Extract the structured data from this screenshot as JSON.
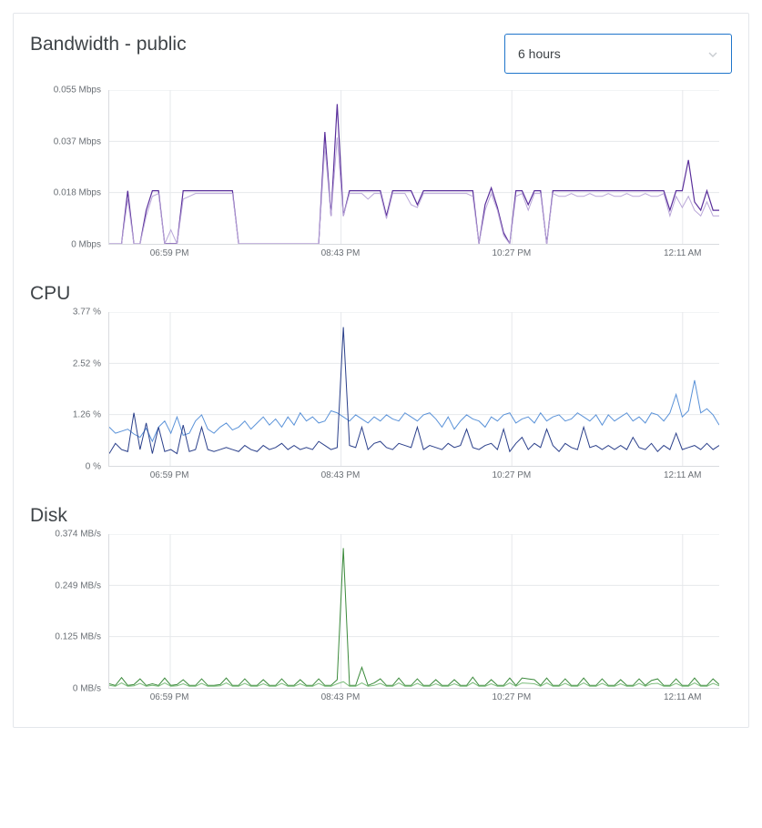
{
  "header": {
    "title": "Bandwidth - public",
    "range_selected": "6 hours"
  },
  "colors": {
    "card_border": "#e4e7eb",
    "select_border": "#1f75cb",
    "grid": "#e6e8eb",
    "axis": "#d9dbdf",
    "text": "#3f4448",
    "tick": "#6a6f75",
    "chevron": "#c8ccd0"
  },
  "x_labels": [
    "06:59 PM",
    "08:43 PM",
    "10:27 PM",
    "12:11 AM"
  ],
  "x_positions": [
    10,
    38,
    66,
    94
  ],
  "charts": {
    "bandwidth": {
      "title": "Bandwidth - public",
      "type": "line",
      "y_labels": [
        "0 Mbps",
        "0.018 Mbps",
        "0.037 Mbps",
        "0.055 Mbps"
      ],
      "ylim": [
        0,
        0.055
      ],
      "grid_color": "#e6e8eb",
      "series": [
        {
          "name": "bandwidth-a",
          "color": "#5a2f9b",
          "stroke_width": 1.2,
          "values": [
            0,
            0,
            0,
            0.019,
            0,
            0,
            0.012,
            0.019,
            0.019,
            0,
            0,
            0,
            0.019,
            0.019,
            0.019,
            0.019,
            0.019,
            0.019,
            0.019,
            0.019,
            0.019,
            0,
            0,
            0,
            0,
            0,
            0,
            0,
            0,
            0,
            0,
            0,
            0,
            0,
            0,
            0.04,
            0.01,
            0.05,
            0.01,
            0.019,
            0.019,
            0.019,
            0.019,
            0.019,
            0.019,
            0.01,
            0.019,
            0.019,
            0.019,
            0.019,
            0.014,
            0.019,
            0.019,
            0.019,
            0.019,
            0.019,
            0.019,
            0.019,
            0.019,
            0.019,
            0,
            0.014,
            0.02,
            0.013,
            0.004,
            0,
            0.019,
            0.019,
            0.014,
            0.019,
            0.019,
            0,
            0.019,
            0.019,
            0.019,
            0.019,
            0.019,
            0.019,
            0.019,
            0.019,
            0.019,
            0.019,
            0.019,
            0.019,
            0.019,
            0.019,
            0.019,
            0.019,
            0.019,
            0.019,
            0.019,
            0.012,
            0.019,
            0.019,
            0.03,
            0.015,
            0.012,
            0.019,
            0.012,
            0.012
          ]
        },
        {
          "name": "bandwidth-b",
          "color": "#b9a6d8",
          "stroke_width": 1,
          "values": [
            0,
            0,
            0,
            0.016,
            0,
            0,
            0.01,
            0.017,
            0.018,
            0,
            0.005,
            0,
            0.016,
            0.017,
            0.018,
            0.018,
            0.018,
            0.018,
            0.018,
            0.018,
            0.018,
            0,
            0,
            0,
            0,
            0,
            0,
            0,
            0,
            0,
            0,
            0,
            0,
            0,
            0,
            0.035,
            0.01,
            0.038,
            0.01,
            0.018,
            0.018,
            0.018,
            0.016,
            0.018,
            0.018,
            0.009,
            0.018,
            0.018,
            0.018,
            0.014,
            0.013,
            0.018,
            0.018,
            0.018,
            0.018,
            0.018,
            0.018,
            0.018,
            0.018,
            0.017,
            0,
            0.012,
            0.018,
            0.012,
            0.003,
            0,
            0.017,
            0.018,
            0.012,
            0.018,
            0.018,
            0,
            0.018,
            0.017,
            0.017,
            0.018,
            0.017,
            0.017,
            0.018,
            0.017,
            0.017,
            0.018,
            0.017,
            0.017,
            0.018,
            0.017,
            0.017,
            0.018,
            0.017,
            0.017,
            0.018,
            0.01,
            0.017,
            0.013,
            0.017,
            0.012,
            0.01,
            0.015,
            0.01,
            0.01
          ]
        }
      ]
    },
    "cpu": {
      "title": "CPU",
      "type": "line",
      "y_labels": [
        "0 %",
        "1.26 %",
        "2.52 %",
        "3.77 %"
      ],
      "ylim": [
        0,
        3.77
      ],
      "grid_color": "#e6e8eb",
      "series": [
        {
          "name": "cpu-b",
          "color": "#5a92d8",
          "stroke_width": 1,
          "values": [
            0.95,
            0.8,
            0.85,
            0.9,
            0.78,
            0.7,
            0.92,
            0.6,
            0.95,
            1.1,
            0.8,
            1.2,
            0.75,
            0.8,
            1.1,
            1.25,
            0.9,
            0.8,
            0.95,
            1.05,
            0.88,
            0.95,
            1.1,
            0.9,
            1.05,
            1.2,
            1.0,
            1.15,
            0.95,
            1.2,
            1.0,
            1.3,
            1.1,
            1.2,
            1.05,
            1.1,
            1.35,
            1.3,
            1.2,
            1.1,
            1.25,
            1.15,
            1.05,
            1.2,
            1.1,
            1.25,
            1.15,
            1.1,
            1.3,
            1.2,
            1.1,
            1.25,
            1.3,
            1.15,
            0.95,
            1.2,
            0.9,
            1.1,
            1.25,
            1.15,
            1.1,
            0.95,
            1.2,
            1.1,
            1.25,
            1.3,
            1.05,
            1.15,
            1.2,
            1.05,
            1.3,
            1.1,
            1.2,
            1.25,
            1.1,
            1.15,
            1.3,
            1.2,
            1.1,
            1.25,
            1.0,
            1.25,
            1.1,
            1.2,
            1.3,
            1.1,
            1.2,
            1.05,
            1.3,
            1.25,
            1.1,
            1.3,
            1.75,
            1.2,
            1.35,
            2.1,
            1.3,
            1.4,
            1.25,
            1.0
          ]
        },
        {
          "name": "cpu-a",
          "color": "#2a3f8a",
          "stroke_width": 1,
          "values": [
            0.3,
            0.55,
            0.4,
            0.35,
            1.3,
            0.4,
            1.05,
            0.3,
            0.95,
            0.35,
            0.4,
            0.3,
            1.0,
            0.35,
            0.4,
            0.95,
            0.4,
            0.35,
            0.4,
            0.45,
            0.4,
            0.35,
            0.5,
            0.4,
            0.35,
            0.5,
            0.4,
            0.45,
            0.55,
            0.4,
            0.5,
            0.4,
            0.45,
            0.4,
            0.6,
            0.5,
            0.4,
            0.45,
            3.4,
            0.5,
            0.45,
            0.95,
            0.4,
            0.55,
            0.6,
            0.45,
            0.4,
            0.55,
            0.5,
            0.45,
            0.95,
            0.4,
            0.5,
            0.45,
            0.4,
            0.55,
            0.45,
            0.5,
            0.9,
            0.45,
            0.4,
            0.5,
            0.55,
            0.4,
            0.9,
            0.35,
            0.55,
            0.7,
            0.4,
            0.55,
            0.45,
            0.9,
            0.5,
            0.35,
            0.55,
            0.45,
            0.4,
            0.95,
            0.45,
            0.5,
            0.4,
            0.5,
            0.4,
            0.5,
            0.4,
            0.7,
            0.45,
            0.4,
            0.55,
            0.35,
            0.5,
            0.4,
            0.8,
            0.4,
            0.45,
            0.5,
            0.4,
            0.55,
            0.4,
            0.5
          ]
        }
      ]
    },
    "disk": {
      "title": "Disk",
      "type": "line",
      "y_labels": [
        "0 MB/s",
        "0.125 MB/s",
        "0.249 MB/s",
        "0.374 MB/s"
      ],
      "ylim": [
        0,
        0.374
      ],
      "grid_color": "#e6e8eb",
      "series": [
        {
          "name": "disk-a",
          "color": "#3b8a3b",
          "stroke_width": 1,
          "values": [
            0.01,
            0.006,
            0.025,
            0.006,
            0.008,
            0.022,
            0.006,
            0.01,
            0.006,
            0.024,
            0.006,
            0.008,
            0.02,
            0.006,
            0.006,
            0.022,
            0.006,
            0.006,
            0.008,
            0.024,
            0.006,
            0.006,
            0.022,
            0.006,
            0.006,
            0.02,
            0.006,
            0.006,
            0.022,
            0.006,
            0.006,
            0.02,
            0.006,
            0.006,
            0.022,
            0.006,
            0.006,
            0.02,
            0.34,
            0.006,
            0.006,
            0.05,
            0.006,
            0.012,
            0.022,
            0.006,
            0.006,
            0.024,
            0.006,
            0.006,
            0.022,
            0.006,
            0.006,
            0.02,
            0.006,
            0.006,
            0.02,
            0.006,
            0.006,
            0.026,
            0.006,
            0.006,
            0.02,
            0.006,
            0.006,
            0.024,
            0.006,
            0.024,
            0.022,
            0.02,
            0.006,
            0.024,
            0.006,
            0.006,
            0.022,
            0.006,
            0.006,
            0.024,
            0.006,
            0.006,
            0.022,
            0.006,
            0.006,
            0.02,
            0.006,
            0.006,
            0.022,
            0.006,
            0.018,
            0.022,
            0.006,
            0.006,
            0.022,
            0.006,
            0.006,
            0.024,
            0.006,
            0.006,
            0.022,
            0.008
          ]
        },
        {
          "name": "disk-b",
          "color": "#7bbd7b",
          "stroke_width": 1,
          "values": [
            0.006,
            0.004,
            0.012,
            0.004,
            0.005,
            0.011,
            0.004,
            0.006,
            0.004,
            0.012,
            0.004,
            0.005,
            0.01,
            0.004,
            0.004,
            0.011,
            0.004,
            0.004,
            0.005,
            0.012,
            0.004,
            0.004,
            0.011,
            0.004,
            0.004,
            0.01,
            0.004,
            0.004,
            0.011,
            0.004,
            0.004,
            0.01,
            0.004,
            0.004,
            0.011,
            0.004,
            0.004,
            0.01,
            0.015,
            0.004,
            0.004,
            0.012,
            0.004,
            0.006,
            0.011,
            0.004,
            0.004,
            0.012,
            0.004,
            0.004,
            0.011,
            0.004,
            0.004,
            0.01,
            0.004,
            0.004,
            0.01,
            0.004,
            0.004,
            0.013,
            0.004,
            0.004,
            0.01,
            0.004,
            0.004,
            0.012,
            0.004,
            0.012,
            0.011,
            0.01,
            0.004,
            0.012,
            0.004,
            0.004,
            0.011,
            0.004,
            0.004,
            0.012,
            0.004,
            0.004,
            0.011,
            0.004,
            0.004,
            0.01,
            0.004,
            0.004,
            0.011,
            0.004,
            0.01,
            0.011,
            0.004,
            0.004,
            0.011,
            0.004,
            0.004,
            0.012,
            0.004,
            0.004,
            0.011,
            0.005
          ]
        }
      ]
    }
  }
}
